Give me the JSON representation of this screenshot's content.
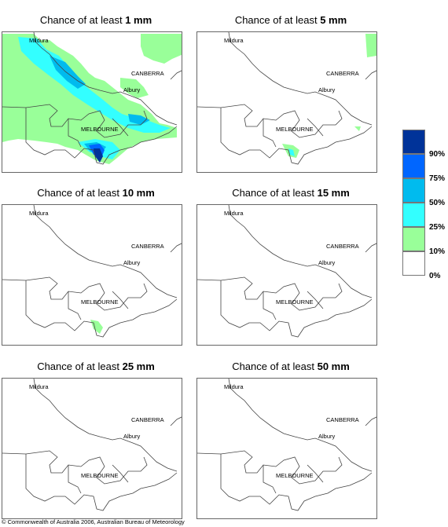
{
  "panels": [
    {
      "prefix": "Chance of at least ",
      "amount": "1 mm"
    },
    {
      "prefix": "Chance of at least ",
      "amount": "5 mm"
    },
    {
      "prefix": "Chance of at least ",
      "amount": "10 mm"
    },
    {
      "prefix": "Chance of at least ",
      "amount": "15 mm"
    },
    {
      "prefix": "Chance of at least ",
      "amount": "25 mm"
    },
    {
      "prefix": "Chance of at least ",
      "amount": "50 mm"
    }
  ],
  "places": {
    "mildura": "Mildura",
    "canberra": "CANBERRA",
    "albury": "Albury",
    "melbourne": "MELBOURNE"
  },
  "legend": {
    "ticks": [
      "90%",
      "75%",
      "50%",
      "25%",
      "10%",
      "0%"
    ],
    "colors": [
      "#003399",
      "#0066ff",
      "#00bbee",
      "#33ffff",
      "#99ff99",
      "#ffffff"
    ]
  },
  "copyright": "© Commonwealth of Australia 2006, Australian Bureau of Meteorology"
}
